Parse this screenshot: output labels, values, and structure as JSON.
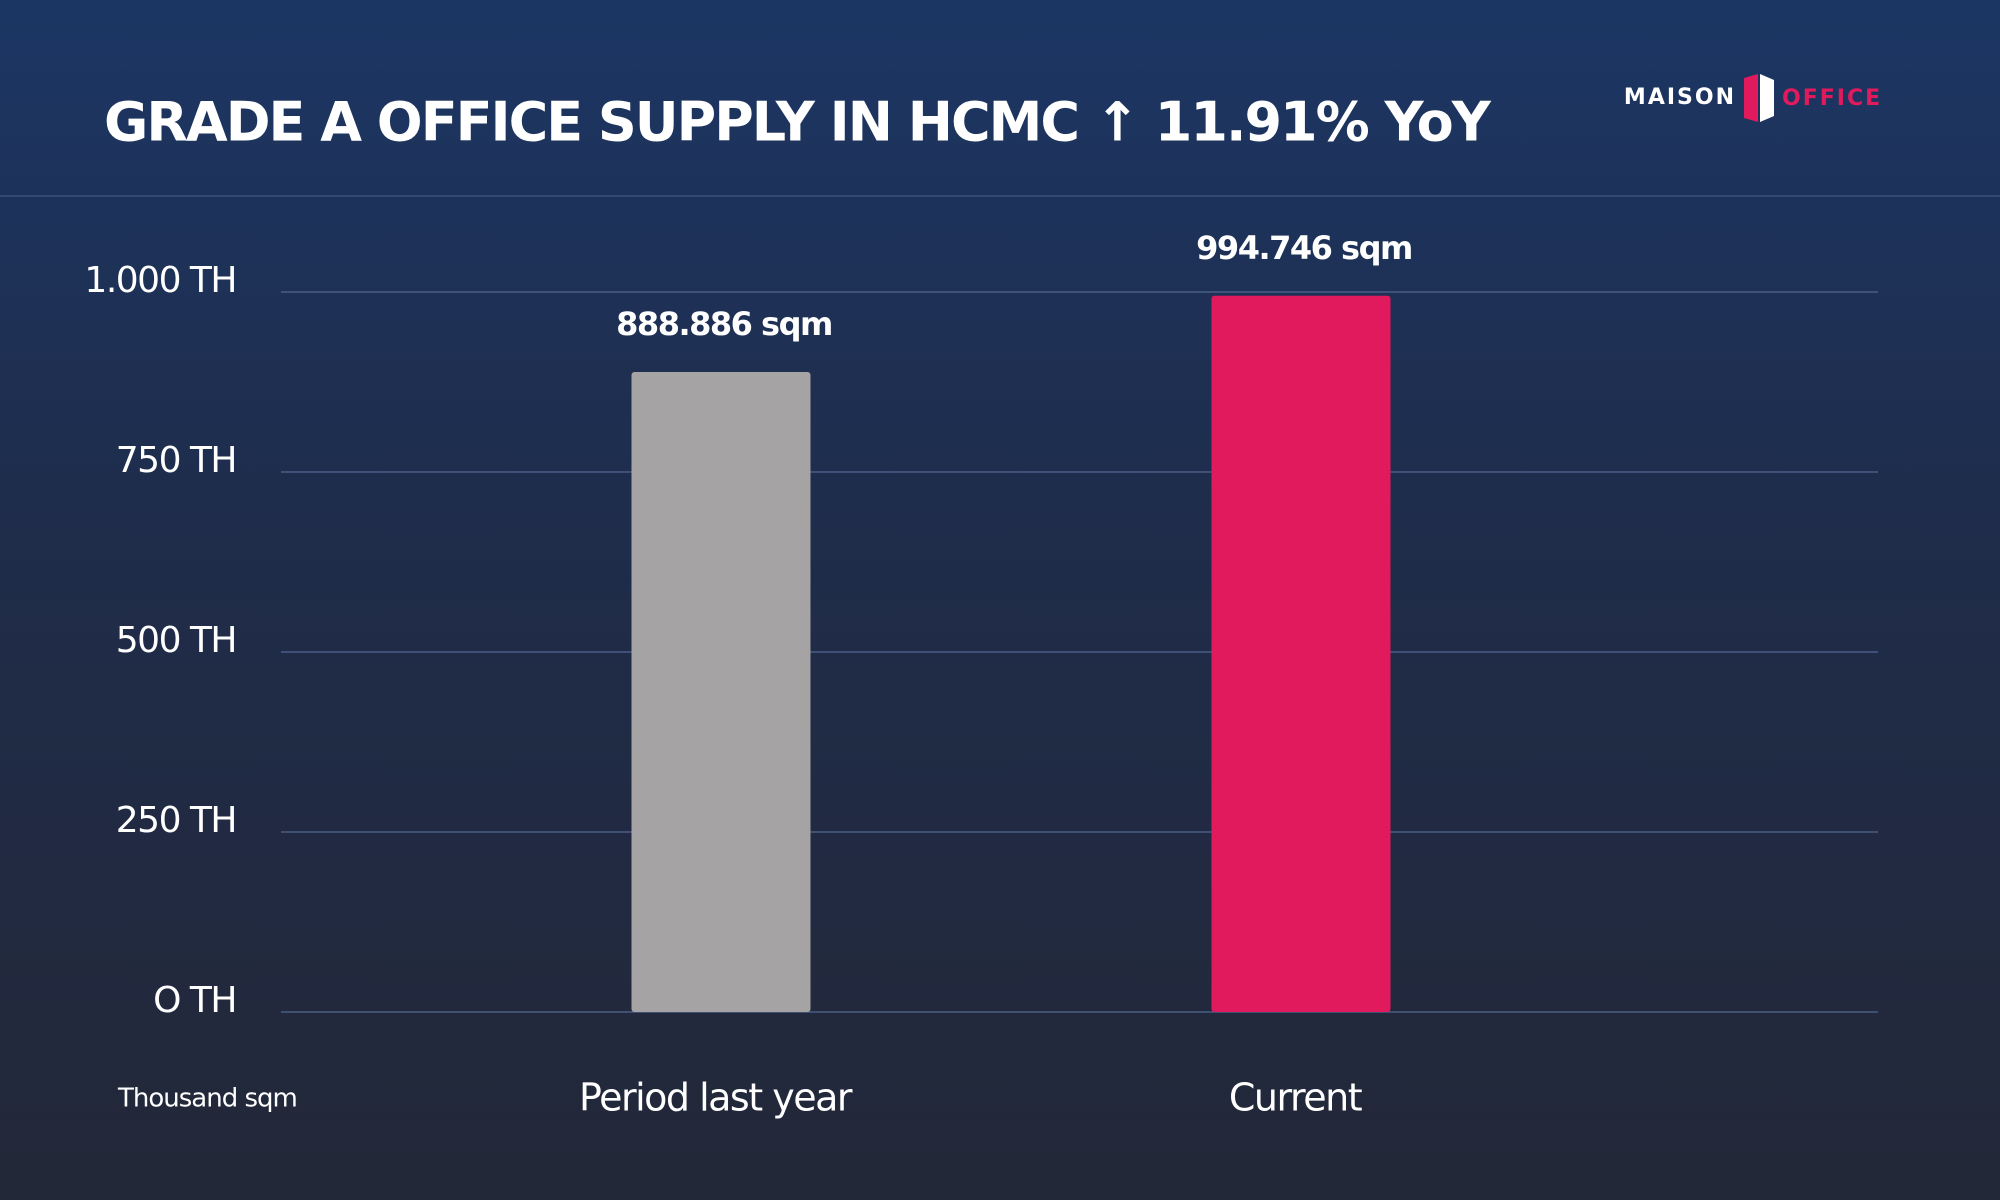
{
  "chart_data": {
    "type": "bar",
    "title": "GRADE A OFFICE SUPPLY IN HCMC ↑ 11.91% YoY",
    "brand": {
      "left": "MAISON",
      "right": "OFFICE"
    },
    "y_axis_label": "Thousand sqm",
    "categories": [
      "Period last year",
      "Current"
    ],
    "values": [
      888.886,
      994.746
    ],
    "value_labels": [
      "888.886 sqm",
      "994.746 sqm"
    ],
    "colors": [
      "#a5a3a3",
      "#e11a5d"
    ],
    "ylim": [
      0,
      1000
    ],
    "yticks": [
      {
        "value": 0,
        "label": "O TH"
      },
      {
        "value": 250,
        "label": "250 TH"
      },
      {
        "value": 500,
        "label": "500 TH"
      },
      {
        "value": 750,
        "label": "750 TH"
      },
      {
        "value": 1000,
        "label": "1.000 TH"
      }
    ],
    "grid": true
  }
}
